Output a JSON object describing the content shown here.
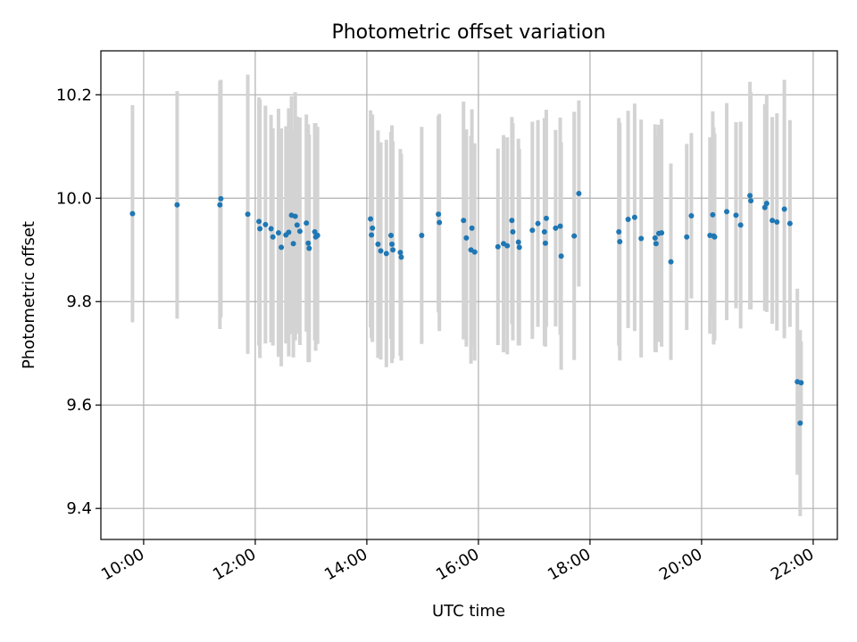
{
  "chart_data": {
    "type": "scatter",
    "title": "Photometric offset variation",
    "xlabel": "UTC time",
    "ylabel": "Photometric offset",
    "x_unit": "hours UTC",
    "xlim": [
      "09:14",
      "22:26"
    ],
    "ylim": [
      9.34,
      10.285
    ],
    "x_tick_labels": [
      "10:00",
      "12:00",
      "14:00",
      "16:00",
      "18:00",
      "20:00",
      "22:00"
    ],
    "y_tick_labels": [
      "9.4",
      "9.6",
      "9.8",
      "10.0",
      "10.2"
    ],
    "grid": true,
    "legend": "none",
    "colors": {
      "points": "#1f77b4",
      "error_bars": "#d3d3d3",
      "grid": "#b0b0b0"
    },
    "series": [
      {
        "x": [
          "09:48",
          "10:36",
          "11:22",
          "11:23",
          "11:52",
          "12:04",
          "12:05",
          "12:11",
          "12:17",
          "12:19",
          "12:25",
          "12:28",
          "12:33",
          "12:36",
          "12:39",
          "12:41",
          "12:43",
          "12:45",
          "12:48",
          "12:55",
          "12:57",
          "12:58",
          "13:04",
          "13:05",
          "13:07",
          "14:04",
          "14:05",
          "14:06",
          "14:12",
          "14:15",
          "14:21",
          "14:26",
          "14:27",
          "14:28",
          "14:36",
          "14:37",
          "14:59",
          "15:17",
          "15:18",
          "15:44",
          "15:47",
          "15:52",
          "15:53",
          "15:56",
          "16:21",
          "16:27",
          "16:31",
          "16:36",
          "16:37",
          "16:43",
          "16:44",
          "16:58",
          "17:04",
          "17:11",
          "17:12",
          "17:13",
          "17:23",
          "17:28",
          "17:29",
          "17:43",
          "17:48",
          "18:31",
          "18:32",
          "18:41",
          "18:48",
          "18:55",
          "19:10",
          "19:11",
          "19:14",
          "19:17",
          "19:27",
          "19:44",
          "19:49",
          "20:09",
          "20:12",
          "20:13",
          "20:14",
          "20:27",
          "20:37",
          "20:42",
          "20:52",
          "20:53",
          "21:08",
          "21:10",
          "21:16",
          "21:21",
          "21:29",
          "21:35",
          "21:43",
          "21:46",
          "21:47"
        ],
        "y": [
          9.97,
          9.987,
          9.987,
          9.999,
          9.969,
          9.955,
          9.941,
          9.949,
          9.941,
          9.925,
          9.933,
          9.905,
          9.929,
          9.934,
          9.967,
          9.912,
          9.965,
          9.948,
          9.936,
          9.952,
          9.913,
          9.903,
          9.935,
          9.925,
          9.928,
          9.96,
          9.929,
          9.942,
          9.911,
          9.898,
          9.893,
          9.928,
          9.911,
          9.9,
          9.895,
          9.886,
          9.928,
          9.969,
          9.953,
          9.957,
          9.923,
          9.9,
          9.942,
          9.896,
          9.906,
          9.912,
          9.908,
          9.957,
          9.935,
          9.915,
          9.905,
          9.938,
          9.951,
          9.935,
          9.913,
          9.961,
          9.942,
          9.946,
          9.888,
          9.927,
          10.009,
          9.935,
          9.916,
          9.959,
          9.963,
          9.922,
          9.923,
          9.912,
          9.932,
          9.933,
          9.877,
          9.925,
          9.966,
          9.928,
          9.968,
          9.927,
          9.925,
          9.974,
          9.967,
          9.948,
          10.005,
          9.995,
          9.982,
          9.99,
          9.957,
          9.954,
          9.979,
          9.951,
          9.645,
          9.565,
          9.643
        ],
        "yerr": [
          0.21,
          0.22,
          0.24,
          0.23,
          0.27,
          0.24,
          0.25,
          0.23,
          0.22,
          0.21,
          0.24,
          0.23,
          0.21,
          0.24,
          0.23,
          0.22,
          0.24,
          0.21,
          0.22,
          0.21,
          0.23,
          0.22,
          0.21,
          0.22,
          0.21,
          0.21,
          0.2,
          0.22,
          0.22,
          0.21,
          0.22,
          0.2,
          0.23,
          0.21,
          0.2,
          0.2,
          0.21,
          0.19,
          0.21,
          0.23,
          0.21,
          0.22,
          0.23,
          0.21,
          0.19,
          0.21,
          0.21,
          0.2,
          0.21,
          0.2,
          0.19,
          0.21,
          0.2,
          0.22,
          0.2,
          0.21,
          0.19,
          0.21,
          0.22,
          0.24,
          0.18,
          0.22,
          0.23,
          0.21,
          0.22,
          0.23,
          0.22,
          0.21,
          0.21,
          0.22,
          0.19,
          0.18,
          0.16,
          0.19,
          0.2,
          0.21,
          0.2,
          0.21,
          0.18,
          0.2,
          0.22,
          0.21,
          0.2,
          0.21,
          0.2,
          0.21,
          0.25,
          0.2,
          0.18,
          0.18,
          0.08
        ]
      }
    ]
  }
}
